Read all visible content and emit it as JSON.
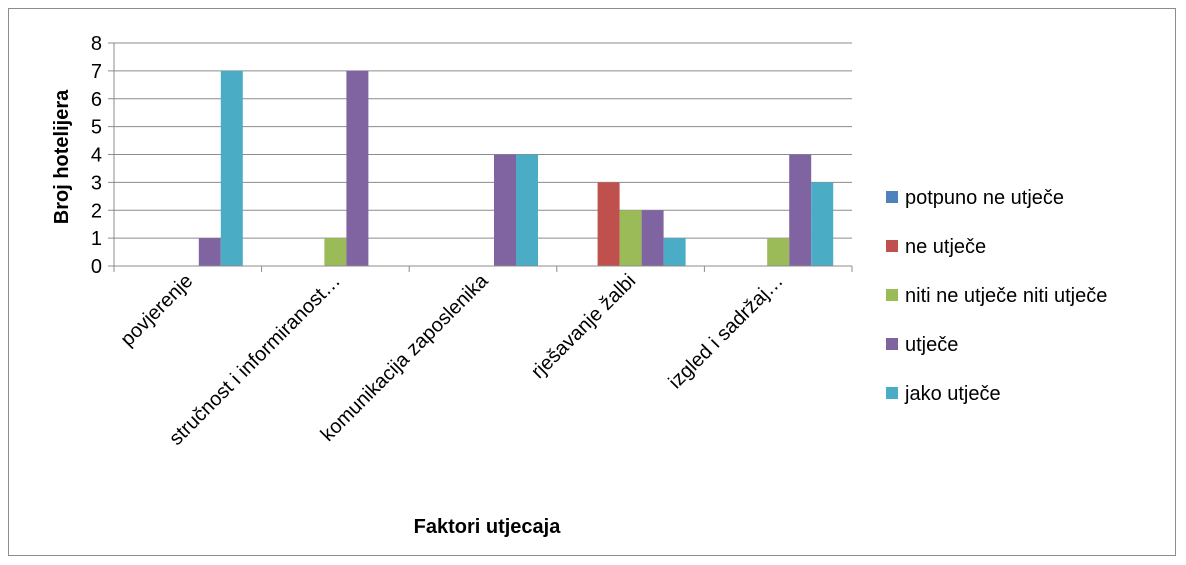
{
  "chart_data": {
    "type": "bar",
    "title": "",
    "xlabel": "Faktori utjecaja",
    "ylabel": "Broj hotelijera",
    "ylim": [
      0,
      8
    ],
    "yticks": [
      "0",
      "1",
      "2",
      "3",
      "4",
      "5",
      "6",
      "7",
      "8"
    ],
    "grid": true,
    "legend_position": "right",
    "categories": [
      "povjerenje",
      "stručnost i informiranost…",
      "komunikacija zaposlenika",
      "rješavanje žalbi",
      "izgled i sadržaj…"
    ],
    "series": [
      {
        "name": "potpuno ne utječe",
        "color": "#4F81BD",
        "values": [
          0,
          0,
          0,
          0,
          0
        ]
      },
      {
        "name": "ne utječe",
        "color": "#C0504D",
        "values": [
          0,
          0,
          0,
          3,
          0
        ]
      },
      {
        "name": "niti ne utječe niti utječe",
        "color": "#9BBB59",
        "values": [
          0,
          1,
          0,
          2,
          1
        ]
      },
      {
        "name": "utječe",
        "color": "#8064A2",
        "values": [
          1,
          7,
          4,
          2,
          4
        ]
      },
      {
        "name": "jako utječe",
        "color": "#4BACC6",
        "values": [
          7,
          0,
          4,
          1,
          3
        ]
      }
    ]
  }
}
